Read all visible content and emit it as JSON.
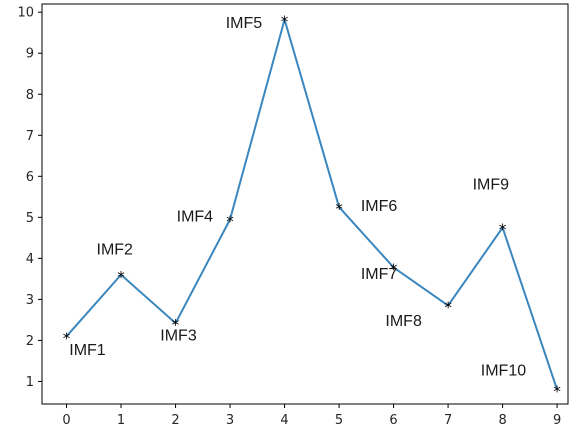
{
  "chart_data": {
    "type": "line",
    "title": "",
    "xlabel": "",
    "ylabel": "",
    "grid": false,
    "legend": "none",
    "xlim": [
      -0.45,
      9.2
    ],
    "ylim": [
      0.45,
      10.2
    ],
    "x_ticks": [
      0,
      1,
      2,
      3,
      4,
      5,
      6,
      7,
      8,
      9
    ],
    "x_tick_labels": [
      "0",
      "1",
      "2",
      "3",
      "4",
      "5",
      "6",
      "7",
      "8",
      "9"
    ],
    "y_ticks": [
      1,
      2,
      3,
      4,
      5,
      6,
      7,
      8,
      9,
      10
    ],
    "y_tick_labels": [
      "1",
      "2",
      "3",
      "4",
      "5",
      "6",
      "7",
      "8",
      "9",
      "10"
    ],
    "series": [
      {
        "x": [
          0,
          1,
          2,
          3,
          4,
          5,
          6,
          7,
          8,
          9
        ],
        "values": [
          2.1,
          3.6,
          2.42,
          4.95,
          9.82,
          5.25,
          3.78,
          2.85,
          4.75,
          0.8
        ],
        "color": "#3a86be",
        "marker": "*",
        "marker_color": "#000000"
      }
    ],
    "annotations": [
      {
        "text": "IMF1",
        "x": 0.05,
        "y": 1.65
      },
      {
        "text": "IMF2",
        "x": 0.55,
        "y": 4.1
      },
      {
        "text": "IMF3",
        "x": 1.72,
        "y": 2.0
      },
      {
        "text": "IMF4",
        "x": 2.02,
        "y": 4.9
      },
      {
        "text": "IMF5",
        "x": 2.92,
        "y": 9.62
      },
      {
        "text": "IMF6",
        "x": 5.4,
        "y": 5.15
      },
      {
        "text": "IMF7",
        "x": 5.4,
        "y": 3.5
      },
      {
        "text": "IMF8",
        "x": 5.85,
        "y": 2.35
      },
      {
        "text": "IMF9",
        "x": 7.45,
        "y": 5.68
      },
      {
        "text": "IMF10",
        "x": 7.6,
        "y": 1.15
      }
    ]
  }
}
